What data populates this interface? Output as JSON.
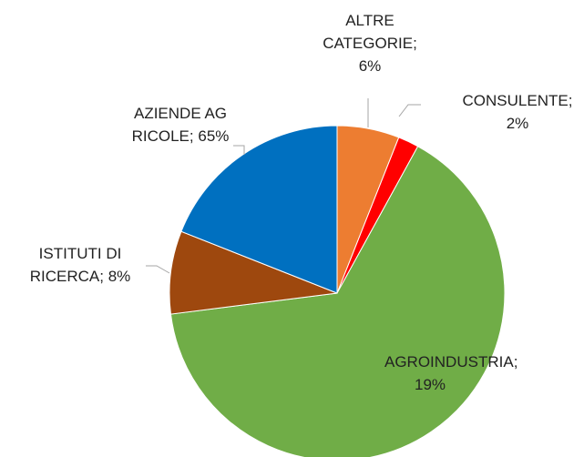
{
  "chart_data": {
    "type": "pie",
    "categories": [
      "ALTRE CATEGORIE",
      "CONSULENTE",
      "AZIENDE AGRICOLE",
      "ISTITUTI DI RICERCA",
      "AGROINDUSTRIA"
    ],
    "values": [
      6,
      2,
      65,
      8,
      19
    ],
    "value_labels": [
      "6%",
      "2%",
      "65%",
      "8%",
      "19%"
    ],
    "label_separator": ";",
    "colors": [
      "#ed7d31",
      "#ff0000",
      "#70ad47",
      "#9e480e",
      "#0070c0"
    ]
  }
}
